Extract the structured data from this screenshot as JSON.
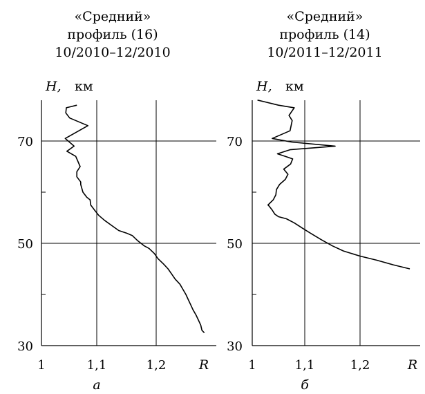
{
  "chart_data": [
    {
      "type": "line",
      "title_lines": [
        "«Средний»",
        "профиль (16)",
        "10/2010–12/2010"
      ],
      "ylabel": "H,",
      "yunit": "км",
      "xlabel": "R",
      "panel_label": "а",
      "xlim": [
        1.0,
        1.3
      ],
      "ylim": [
        30,
        78
      ],
      "xticks": [
        1.0,
        1.1,
        1.2
      ],
      "xtick_labels": [
        "1",
        "1,1",
        "1,2"
      ],
      "yticks_labeled": [
        30,
        50,
        70
      ],
      "ytick_labels": [
        "30",
        "50",
        "70"
      ],
      "yticks_minor": [
        40,
        60
      ],
      "grid": true,
      "series": [
        {
          "x": [
            1.281,
            1.277,
            1.275,
            1.271,
            1.267,
            1.262,
            1.258,
            1.254,
            1.25,
            1.245,
            1.24,
            1.232,
            1.226,
            1.22,
            1.212,
            1.203,
            1.197,
            1.188,
            1.18,
            1.169,
            1.16,
            1.15,
            1.137,
            1.125,
            1.113,
            1.103,
            1.096,
            1.089,
            1.088,
            1.082,
            1.075,
            1.071,
            1.071,
            1.064,
            1.064,
            1.07,
            1.062,
            1.046,
            1.059,
            1.043,
            1.084,
            1.051,
            1.044,
            1.045,
            1.064
          ],
          "y": [
            32.5,
            33.0,
            34.0,
            35.0,
            36.0,
            37.0,
            38.0,
            39.0,
            40.0,
            41.0,
            42.0,
            43.0,
            44.0,
            45.0,
            46.0,
            47.0,
            48.0,
            49.0,
            49.5,
            50.5,
            51.5,
            52.0,
            52.5,
            53.5,
            54.5,
            55.5,
            56.5,
            57.5,
            58.5,
            59.0,
            60.0,
            61.5,
            62.0,
            63.0,
            64.0,
            65.0,
            67.0,
            68.0,
            69.0,
            70.5,
            73.0,
            74.5,
            75.5,
            76.5,
            77.0
          ]
        }
      ]
    },
    {
      "type": "line",
      "title_lines": [
        "«Средний»",
        "профиль (14)",
        "10/2011–12/2011"
      ],
      "ylabel": "H,",
      "yunit": "км",
      "xlabel": "R",
      "panel_label": "б",
      "xlim": [
        1.0,
        1.3
      ],
      "ylim": [
        30,
        78
      ],
      "xticks": [
        1.0,
        1.1,
        1.2
      ],
      "xtick_labels": [
        "1",
        "1,1",
        "1,2"
      ],
      "yticks_labeled": [
        30,
        50,
        70
      ],
      "ytick_labels": [
        "30",
        "50",
        "70"
      ],
      "yticks_minor": [
        40,
        60
      ],
      "grid": true,
      "series": [
        {
          "x": [
            1.29,
            1.26,
            1.23,
            1.2,
            1.17,
            1.15,
            1.13,
            1.11,
            1.095,
            1.08,
            1.065,
            1.05,
            1.043,
            1.038,
            1.032,
            1.03,
            1.04,
            1.045,
            1.046,
            1.052,
            1.063,
            1.068,
            1.06,
            1.073,
            1.077,
            1.063,
            1.048,
            1.072,
            1.155,
            1.075,
            1.038,
            1.072,
            1.076,
            1.07,
            1.08,
            1.05,
            1.01
          ],
          "y": [
            45.0,
            45.8,
            46.7,
            47.5,
            48.5,
            49.5,
            50.7,
            52.0,
            53.0,
            54.0,
            54.8,
            55.2,
            55.7,
            56.5,
            57.3,
            57.5,
            58.5,
            59.5,
            60.5,
            61.5,
            62.5,
            63.5,
            64.5,
            65.5,
            66.5,
            67.0,
            67.5,
            68.3,
            69.0,
            69.8,
            70.5,
            72.0,
            74.0,
            75.0,
            76.5,
            77.0,
            78.0
          ]
        }
      ]
    }
  ]
}
